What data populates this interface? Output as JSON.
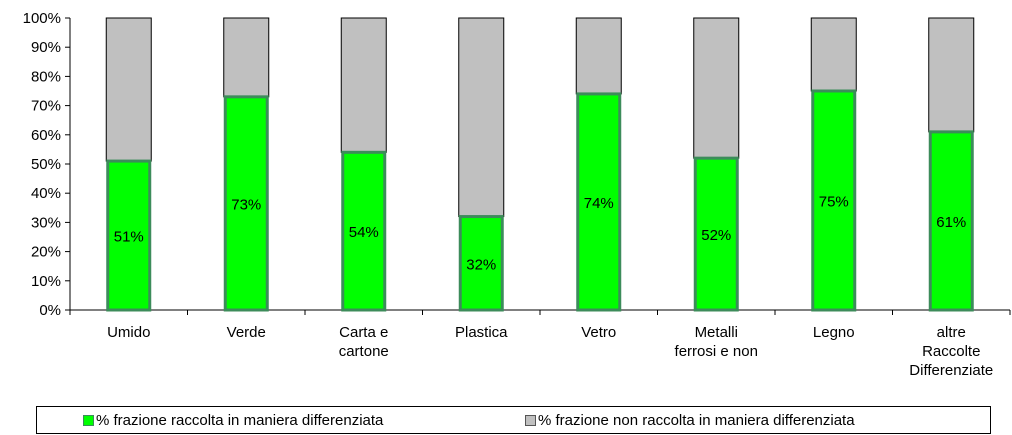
{
  "chart_data": {
    "type": "bar",
    "stacked": true,
    "categories": [
      [
        "Umido"
      ],
      [
        "Verde"
      ],
      [
        "Carta e",
        "cartone"
      ],
      [
        "Plastica"
      ],
      [
        "Vetro"
      ],
      [
        "Metalli",
        "ferrosi e non"
      ],
      [
        "Legno"
      ],
      [
        "altre",
        "Raccolte",
        "Differenziate"
      ]
    ],
    "series": [
      {
        "name": "% frazione raccolta in maniera differenziata",
        "color": "#00ff00",
        "border": "#3c8c5a",
        "values": [
          51,
          73,
          54,
          32,
          74,
          52,
          75,
          61
        ],
        "labels": [
          "51%",
          "73%",
          "54%",
          "32%",
          "74%",
          "52%",
          "75%",
          "61%"
        ]
      },
      {
        "name": "% frazione non raccolta in maniera differenziata",
        "color": "#c0c0c0",
        "border": "#000000",
        "values": [
          49,
          27,
          46,
          68,
          26,
          48,
          25,
          39
        ]
      }
    ],
    "ylim": [
      0,
      100
    ],
    "yticks": [
      "0%",
      "10%",
      "20%",
      "30%",
      "40%",
      "50%",
      "60%",
      "70%",
      "80%",
      "90%",
      "100%"
    ],
    "grid": false,
    "legend": "bottom"
  }
}
